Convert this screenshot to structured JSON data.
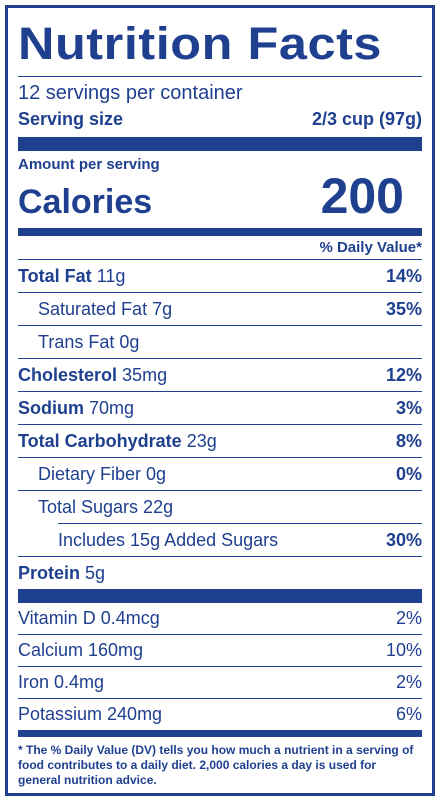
{
  "title": "Nutrition Facts",
  "servings_per_container": "12 servings per container",
  "serving_size": {
    "label": "Serving size",
    "value": "2/3 cup (97g)"
  },
  "amount_per_serving": "Amount per serving",
  "calories": {
    "label": "Calories",
    "value": "200"
  },
  "dv_header": "% Daily Value*",
  "nutrients": [
    {
      "name": "Total Fat",
      "amount": "11g",
      "dv": "14%"
    },
    {
      "name": "Saturated Fat 7g",
      "amount": "",
      "dv": "35%"
    },
    {
      "name": "Trans Fat 0g",
      "amount": "",
      "dv": ""
    },
    {
      "name": "Cholesterol",
      "amount": "35mg",
      "dv": "12%"
    },
    {
      "name": "Sodium",
      "amount": "70mg",
      "dv": "3%"
    },
    {
      "name": "Total Carbohydrate",
      "amount": "23g",
      "dv": "8%"
    },
    {
      "name": "Dietary Fiber 0g",
      "amount": "",
      "dv": "0%"
    },
    {
      "name": "Total Sugars 22g",
      "amount": "",
      "dv": ""
    },
    {
      "name": "Includes 15g Added Sugars",
      "amount": "",
      "dv": "30%"
    },
    {
      "name": "Protein",
      "amount": "5g",
      "dv": ""
    }
  ],
  "vitamins": [
    {
      "name": "Vitamin D 0.4mcg",
      "dv": "2%"
    },
    {
      "name": "Calcium 160mg",
      "dv": "10%"
    },
    {
      "name": "Iron 0.4mg",
      "dv": "2%"
    },
    {
      "name": "Potassium 240mg",
      "dv": "6%"
    }
  ],
  "footnote": "* The % Daily Value (DV) tells you how much a nutrient in a serving of food contributes to a daily diet. 2,000 calories a day is used for general nutrition advice.",
  "colors": {
    "ink": "#1f3f8f",
    "background": "#ffffff"
  }
}
